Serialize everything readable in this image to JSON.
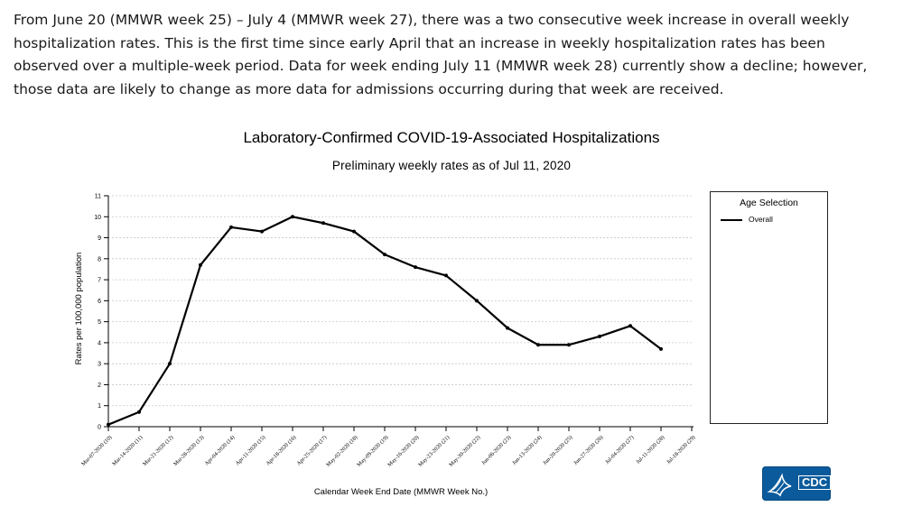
{
  "intro_text": "From June 20 (MMWR week 25) – July 4 (MMWR week 27), there was a two consecutive week increase in overall weekly hospitalization rates. This is the first time since early April that an increase in weekly hospitalization rates has been observed over a multiple-week period. Data for week ending July 11 (MMWR week 28) currently show a decline; however, those data are likely to change as more data for admissions occurring during that week are received.",
  "legend": {
    "title": "Age Selection",
    "series_label": "Overall"
  },
  "logo": {
    "text": "CDC"
  },
  "chart_data": {
    "type": "line",
    "title": "Laboratory-Confirmed COVID-19-Associated Hospitalizations",
    "subtitle": "Preliminary weekly rates as of Jul 11, 2020",
    "xlabel": "Calendar Week End Date (MMWR Week No.)",
    "ylabel": "Rates per 100,000 population",
    "ylim": [
      0,
      11
    ],
    "yticks": [
      0,
      1,
      2,
      3,
      4,
      5,
      6,
      7,
      8,
      9,
      10,
      11
    ],
    "grid": true,
    "legend_position": "right",
    "line_color": "#000000",
    "categories": [
      "Mar-07-2020 (10)",
      "Mar-14-2020 (11)",
      "Mar-21-2020 (12)",
      "Mar-28-2020 (13)",
      "Apr-04-2020 (14)",
      "Apr-11-2020 (15)",
      "Apr-18-2020 (16)",
      "Apr-25-2020 (17)",
      "May-02-2020 (18)",
      "May-09-2020 (19)",
      "May-16-2020 (20)",
      "May-23-2020 (21)",
      "May-30-2020 (22)",
      "Jun-06-2020 (23)",
      "Jun-13-2020 (24)",
      "Jun-20-2020 (25)",
      "Jun-27-2020 (26)",
      "Jul-04-2020 (27)",
      "Jul-11-2020 (28)",
      "Jul-18-2020 (29)"
    ],
    "series": [
      {
        "name": "Overall",
        "values": [
          0.1,
          0.7,
          3.0,
          7.7,
          9.5,
          9.3,
          10.0,
          9.7,
          9.3,
          8.2,
          7.6,
          7.2,
          6.0,
          4.7,
          3.9,
          3.9,
          4.3,
          4.8,
          3.7,
          null
        ]
      }
    ]
  }
}
